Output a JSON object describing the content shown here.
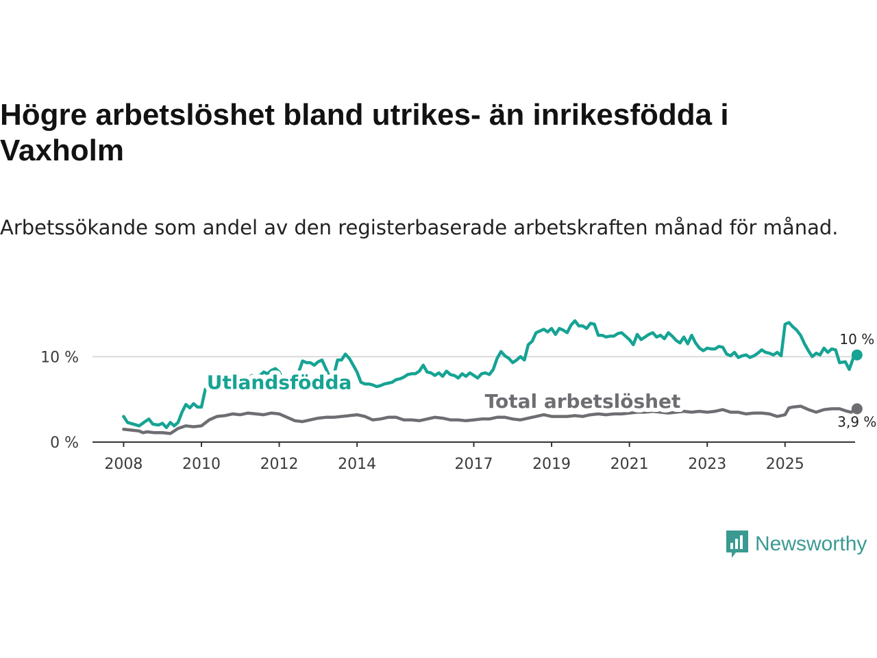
{
  "header": {
    "title": "Högre arbetslöshet bland utrikes- än inrikesfödda i Vaxholm",
    "subtitle": "Arbetssökande som andel av den registerbaserade arbetskraften månad för månad."
  },
  "brand": {
    "name": "Newsworthy",
    "color": "#3a9a92"
  },
  "chart_data": {
    "type": "line",
    "x_unit": "year",
    "xlim": [
      2007.2,
      2026.8
    ],
    "ylim": [
      0,
      15
    ],
    "x_ticks": [
      2008,
      2010,
      2012,
      2014,
      2017,
      2019,
      2021,
      2023,
      2025
    ],
    "y_ticks": [
      {
        "value": 0,
        "label": "0 %"
      },
      {
        "value": 10,
        "label": "10 %"
      }
    ],
    "gridlines": [
      10
    ],
    "series": [
      {
        "name": "Utlandsfödda",
        "label": "Utlandsfödda",
        "color": "#16a394",
        "end_value_label": "10 %",
        "points": [
          [
            2008.0,
            3.0
          ],
          [
            2008.1,
            2.3
          ],
          [
            2008.25,
            2.1
          ],
          [
            2008.4,
            1.9
          ],
          [
            2008.55,
            2.4
          ],
          [
            2008.65,
            2.7
          ],
          [
            2008.75,
            2.1
          ],
          [
            2008.9,
            2.0
          ],
          [
            2009.0,
            2.2
          ],
          [
            2009.1,
            1.7
          ],
          [
            2009.2,
            2.3
          ],
          [
            2009.3,
            1.9
          ],
          [
            2009.4,
            2.3
          ],
          [
            2009.5,
            3.5
          ],
          [
            2009.6,
            4.4
          ],
          [
            2009.7,
            4.0
          ],
          [
            2009.8,
            4.5
          ],
          [
            2009.9,
            4.1
          ],
          [
            2010.0,
            4.1
          ],
          [
            2010.1,
            6.2
          ],
          [
            2010.2,
            6.3
          ],
          [
            2010.3,
            6.5
          ],
          [
            2010.4,
            6.9
          ],
          [
            2010.5,
            7.0
          ],
          [
            2010.6,
            7.0
          ],
          [
            2010.7,
            7.2
          ],
          [
            2010.8,
            7.5
          ],
          [
            2010.9,
            7.5
          ],
          [
            2011.0,
            7.5
          ],
          [
            2011.1,
            7.0
          ],
          [
            2011.2,
            7.5
          ],
          [
            2011.3,
            7.8
          ],
          [
            2011.4,
            6.8
          ],
          [
            2011.5,
            7.8
          ],
          [
            2011.6,
            8.2
          ],
          [
            2011.7,
            8.0
          ],
          [
            2011.8,
            8.4
          ],
          [
            2011.9,
            8.6
          ],
          [
            2012.0,
            8.2
          ],
          [
            2012.1,
            7.2
          ],
          [
            2012.2,
            6.6
          ],
          [
            2012.3,
            6.9
          ],
          [
            2012.4,
            7.5
          ],
          [
            2012.5,
            8.2
          ],
          [
            2012.6,
            9.5
          ],
          [
            2012.7,
            9.3
          ],
          [
            2012.8,
            9.3
          ],
          [
            2012.9,
            9.0
          ],
          [
            2013.0,
            9.4
          ],
          [
            2013.1,
            9.6
          ],
          [
            2013.2,
            8.6
          ],
          [
            2013.3,
            7.6
          ],
          [
            2013.4,
            7.8
          ],
          [
            2013.5,
            9.6
          ],
          [
            2013.6,
            9.6
          ],
          [
            2013.7,
            10.3
          ],
          [
            2013.8,
            9.8
          ],
          [
            2013.9,
            9.0
          ],
          [
            2014.0,
            8.2
          ],
          [
            2014.1,
            7.0
          ],
          [
            2014.2,
            6.8
          ],
          [
            2014.3,
            6.8
          ],
          [
            2014.4,
            6.7
          ],
          [
            2014.5,
            6.5
          ],
          [
            2014.6,
            6.6
          ],
          [
            2014.7,
            6.8
          ],
          [
            2014.8,
            6.9
          ],
          [
            2014.9,
            7.0
          ],
          [
            2015.0,
            7.3
          ],
          [
            2015.1,
            7.4
          ],
          [
            2015.2,
            7.6
          ],
          [
            2015.3,
            7.9
          ],
          [
            2015.4,
            8.0
          ],
          [
            2015.5,
            8.0
          ],
          [
            2015.6,
            8.3
          ],
          [
            2015.7,
            9.0
          ],
          [
            2015.8,
            8.2
          ],
          [
            2015.9,
            8.1
          ],
          [
            2016.0,
            7.8
          ],
          [
            2016.1,
            8.1
          ],
          [
            2016.2,
            7.7
          ],
          [
            2016.3,
            8.3
          ],
          [
            2016.4,
            7.9
          ],
          [
            2016.5,
            7.8
          ],
          [
            2016.6,
            7.5
          ],
          [
            2016.7,
            8.0
          ],
          [
            2016.8,
            7.7
          ],
          [
            2016.9,
            8.1
          ],
          [
            2017.0,
            7.8
          ],
          [
            2017.1,
            7.5
          ],
          [
            2017.2,
            8.0
          ],
          [
            2017.3,
            8.1
          ],
          [
            2017.4,
            7.9
          ],
          [
            2017.5,
            8.5
          ],
          [
            2017.6,
            9.8
          ],
          [
            2017.7,
            10.6
          ],
          [
            2017.8,
            10.1
          ],
          [
            2017.9,
            9.8
          ],
          [
            2018.0,
            9.3
          ],
          [
            2018.1,
            9.6
          ],
          [
            2018.2,
            10.0
          ],
          [
            2018.3,
            9.6
          ],
          [
            2018.4,
            11.4
          ],
          [
            2018.5,
            11.8
          ],
          [
            2018.6,
            12.8
          ],
          [
            2018.7,
            13.0
          ],
          [
            2018.8,
            13.2
          ],
          [
            2018.9,
            12.9
          ],
          [
            2019.0,
            13.3
          ],
          [
            2019.1,
            12.6
          ],
          [
            2019.2,
            13.3
          ],
          [
            2019.3,
            13.1
          ],
          [
            2019.4,
            12.8
          ],
          [
            2019.5,
            13.7
          ],
          [
            2019.6,
            14.2
          ],
          [
            2019.7,
            13.6
          ],
          [
            2019.8,
            13.6
          ],
          [
            2019.9,
            13.3
          ],
          [
            2020.0,
            13.9
          ],
          [
            2020.1,
            13.8
          ],
          [
            2020.2,
            12.5
          ],
          [
            2020.3,
            12.5
          ],
          [
            2020.4,
            12.3
          ],
          [
            2020.5,
            12.4
          ],
          [
            2020.6,
            12.4
          ],
          [
            2020.7,
            12.7
          ],
          [
            2020.8,
            12.8
          ],
          [
            2020.9,
            12.4
          ],
          [
            2021.0,
            12.0
          ],
          [
            2021.1,
            11.4
          ],
          [
            2021.2,
            12.6
          ],
          [
            2021.3,
            12.0
          ],
          [
            2021.4,
            12.3
          ],
          [
            2021.5,
            12.6
          ],
          [
            2021.6,
            12.8
          ],
          [
            2021.7,
            12.3
          ],
          [
            2021.8,
            12.5
          ],
          [
            2021.9,
            12.1
          ],
          [
            2022.0,
            12.8
          ],
          [
            2022.1,
            12.4
          ],
          [
            2022.2,
            11.9
          ],
          [
            2022.3,
            11.6
          ],
          [
            2022.4,
            12.3
          ],
          [
            2022.5,
            11.5
          ],
          [
            2022.6,
            12.5
          ],
          [
            2022.7,
            11.6
          ],
          [
            2022.8,
            11.0
          ],
          [
            2022.9,
            10.7
          ],
          [
            2023.0,
            11.0
          ],
          [
            2023.1,
            10.9
          ],
          [
            2023.2,
            10.9
          ],
          [
            2023.3,
            11.2
          ],
          [
            2023.4,
            11.1
          ],
          [
            2023.5,
            10.3
          ],
          [
            2023.6,
            10.1
          ],
          [
            2023.7,
            10.5
          ],
          [
            2023.8,
            9.9
          ],
          [
            2023.9,
            10.1
          ],
          [
            2024.0,
            10.2
          ],
          [
            2024.1,
            9.9
          ],
          [
            2024.2,
            10.1
          ],
          [
            2024.3,
            10.4
          ],
          [
            2024.4,
            10.8
          ],
          [
            2024.5,
            10.5
          ],
          [
            2024.6,
            10.4
          ],
          [
            2024.7,
            10.2
          ],
          [
            2024.8,
            10.5
          ],
          [
            2024.9,
            10.1
          ],
          [
            2025.0,
            13.8
          ],
          [
            2025.1,
            14.0
          ],
          [
            2025.2,
            13.5
          ],
          [
            2025.3,
            13.1
          ],
          [
            2025.4,
            12.5
          ],
          [
            2025.5,
            11.5
          ],
          [
            2025.6,
            10.7
          ],
          [
            2025.7,
            10.0
          ],
          [
            2025.8,
            10.4
          ],
          [
            2025.9,
            10.2
          ],
          [
            2026.0,
            11.0
          ],
          [
            2026.1,
            10.5
          ],
          [
            2026.2,
            10.9
          ],
          [
            2026.3,
            10.8
          ],
          [
            2026.4,
            9.3
          ],
          [
            2026.55,
            9.4
          ],
          [
            2026.65,
            8.5
          ],
          [
            2026.75,
            9.8
          ],
          [
            2026.85,
            10.2
          ]
        ]
      },
      {
        "name": "Total arbetslöshet",
        "label": "Total arbetslöshet",
        "color": "#6e6d72",
        "end_value_label": "3,9 %",
        "points": [
          [
            2008.0,
            1.5
          ],
          [
            2008.2,
            1.4
          ],
          [
            2008.4,
            1.3
          ],
          [
            2008.5,
            1.1
          ],
          [
            2008.6,
            1.2
          ],
          [
            2008.8,
            1.1
          ],
          [
            2009.0,
            1.1
          ],
          [
            2009.2,
            1.0
          ],
          [
            2009.4,
            1.6
          ],
          [
            2009.6,
            1.9
          ],
          [
            2009.8,
            1.8
          ],
          [
            2010.0,
            1.9
          ],
          [
            2010.2,
            2.6
          ],
          [
            2010.4,
            3.0
          ],
          [
            2010.6,
            3.1
          ],
          [
            2010.8,
            3.3
          ],
          [
            2011.0,
            3.2
          ],
          [
            2011.2,
            3.4
          ],
          [
            2011.4,
            3.3
          ],
          [
            2011.6,
            3.2
          ],
          [
            2011.8,
            3.4
          ],
          [
            2012.0,
            3.3
          ],
          [
            2012.2,
            2.9
          ],
          [
            2012.4,
            2.5
          ],
          [
            2012.6,
            2.4
          ],
          [
            2012.8,
            2.6
          ],
          [
            2013.0,
            2.8
          ],
          [
            2013.2,
            2.9
          ],
          [
            2013.4,
            2.9
          ],
          [
            2013.6,
            3.0
          ],
          [
            2013.8,
            3.1
          ],
          [
            2014.0,
            3.2
          ],
          [
            2014.2,
            3.0
          ],
          [
            2014.4,
            2.6
          ],
          [
            2014.6,
            2.7
          ],
          [
            2014.8,
            2.9
          ],
          [
            2015.0,
            2.9
          ],
          [
            2015.2,
            2.6
          ],
          [
            2015.4,
            2.6
          ],
          [
            2015.6,
            2.5
          ],
          [
            2015.8,
            2.7
          ],
          [
            2016.0,
            2.9
          ],
          [
            2016.2,
            2.8
          ],
          [
            2016.4,
            2.6
          ],
          [
            2016.6,
            2.6
          ],
          [
            2016.8,
            2.5
          ],
          [
            2017.0,
            2.6
          ],
          [
            2017.2,
            2.7
          ],
          [
            2017.4,
            2.7
          ],
          [
            2017.6,
            2.9
          ],
          [
            2017.8,
            2.9
          ],
          [
            2018.0,
            2.7
          ],
          [
            2018.2,
            2.6
          ],
          [
            2018.4,
            2.8
          ],
          [
            2018.6,
            3.0
          ],
          [
            2018.8,
            3.2
          ],
          [
            2019.0,
            3.0
          ],
          [
            2019.2,
            3.0
          ],
          [
            2019.4,
            3.0
          ],
          [
            2019.6,
            3.1
          ],
          [
            2019.8,
            3.0
          ],
          [
            2020.0,
            3.2
          ],
          [
            2020.2,
            3.3
          ],
          [
            2020.4,
            3.2
          ],
          [
            2020.6,
            3.3
          ],
          [
            2020.8,
            3.3
          ],
          [
            2021.0,
            3.4
          ],
          [
            2021.2,
            3.5
          ],
          [
            2021.4,
            3.5
          ],
          [
            2021.6,
            3.6
          ],
          [
            2021.8,
            3.5
          ],
          [
            2022.0,
            3.4
          ],
          [
            2022.2,
            3.5
          ],
          [
            2022.4,
            3.6
          ],
          [
            2022.6,
            3.5
          ],
          [
            2022.8,
            3.6
          ],
          [
            2023.0,
            3.5
          ],
          [
            2023.2,
            3.6
          ],
          [
            2023.4,
            3.8
          ],
          [
            2023.6,
            3.5
          ],
          [
            2023.8,
            3.5
          ],
          [
            2024.0,
            3.3
          ],
          [
            2024.2,
            3.4
          ],
          [
            2024.4,
            3.4
          ],
          [
            2024.6,
            3.3
          ],
          [
            2024.8,
            3.0
          ],
          [
            2025.0,
            3.2
          ],
          [
            2025.1,
            4.0
          ],
          [
            2025.2,
            4.1
          ],
          [
            2025.4,
            4.2
          ],
          [
            2025.6,
            3.8
          ],
          [
            2025.8,
            3.5
          ],
          [
            2026.0,
            3.8
          ],
          [
            2026.2,
            3.9
          ],
          [
            2026.4,
            3.9
          ],
          [
            2026.6,
            3.6
          ],
          [
            2026.7,
            3.5
          ],
          [
            2026.85,
            3.9
          ]
        ]
      }
    ],
    "annotations": [
      {
        "series": "Utlandsfödda",
        "text": "Utlandsfödda",
        "x": 2012.0,
        "y": 6.2
      },
      {
        "series": "Total arbetslöshet",
        "text": "Total arbetslöshet",
        "x": 2019.8,
        "y": 4.0
      }
    ]
  }
}
